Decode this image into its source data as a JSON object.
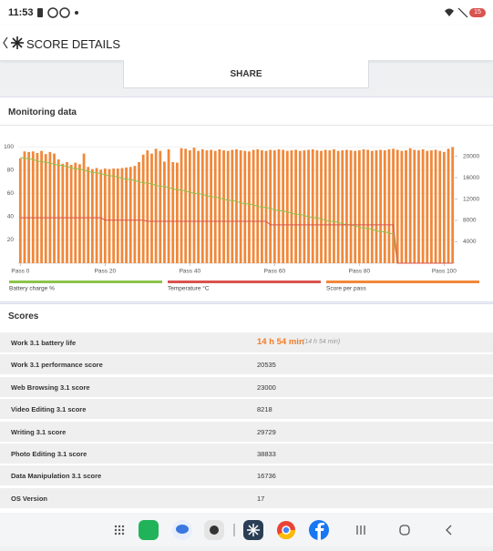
{
  "status_bar": {
    "time": "11:53",
    "battery": "15"
  },
  "header": {
    "title": "SCORE DETAILS"
  },
  "share_button": "SHARE",
  "monitoring": {
    "title": "Monitoring data"
  },
  "chart_data": {
    "type": "combo",
    "x": [
      0,
      1,
      2,
      3,
      4,
      5,
      6,
      7,
      8,
      9,
      10,
      11,
      12,
      13,
      14,
      15,
      16,
      17,
      18,
      19,
      20,
      21,
      22,
      23,
      24,
      25,
      26,
      27,
      28,
      29,
      30,
      31,
      32,
      33,
      34,
      35,
      36,
      37,
      38,
      39,
      40,
      41,
      42,
      43,
      44,
      45,
      46,
      47,
      48,
      49,
      50,
      51,
      52,
      53,
      54,
      55,
      56,
      57,
      58,
      59,
      60,
      61,
      62,
      63,
      64,
      65,
      66,
      67,
      68,
      69,
      70,
      71,
      72,
      73,
      74,
      75,
      76,
      77,
      78,
      79,
      80,
      81,
      82,
      83,
      84,
      85,
      86,
      87,
      88,
      89,
      90,
      91,
      92,
      93,
      94,
      95,
      96,
      97,
      98,
      99,
      100,
      101,
      102
    ],
    "xlim": [
      -0.5,
      102.5
    ],
    "xticks": [
      {
        "value": 0,
        "label": "Pass 0"
      },
      {
        "value": 20,
        "label": "Pass 20"
      },
      {
        "value": 40,
        "label": "Pass 40"
      },
      {
        "value": 60,
        "label": "Pass 60"
      },
      {
        "value": 80,
        "label": "Pass 80"
      },
      {
        "value": 100,
        "label": "Pass 100"
      }
    ],
    "ylim": [
      0,
      108
    ],
    "yticks": [
      20,
      40,
      60,
      80,
      100
    ],
    "y2lim": [
      0,
      23500
    ],
    "y2ticks": [
      4000,
      8000,
      12000,
      16000,
      20000
    ],
    "grid": true,
    "series": [
      {
        "name": "Battery charge %",
        "type": "line",
        "color": "#8cc34a",
        "values": [
          91,
          90,
          90,
          89,
          88,
          87,
          87,
          86,
          85,
          84,
          84,
          83,
          82,
          81,
          81,
          80,
          79,
          78,
          78,
          77,
          76,
          75,
          75,
          74,
          73,
          72,
          72,
          71,
          70,
          69,
          69,
          68,
          67,
          66,
          66,
          65,
          64,
          63,
          63,
          62,
          61,
          60,
          60,
          59,
          58,
          57,
          57,
          56,
          55,
          54,
          54,
          53,
          52,
          51,
          51,
          50,
          49,
          48,
          48,
          47,
          46,
          45,
          45,
          44,
          43,
          42,
          42,
          41,
          40,
          39,
          39,
          38,
          37,
          36,
          36,
          35,
          34,
          33,
          33,
          32,
          31,
          30,
          30,
          29,
          28,
          27,
          27,
          26,
          25,
          0,
          0,
          0,
          0,
          0,
          0,
          0,
          0,
          0,
          0,
          0,
          0,
          0,
          0
        ]
      },
      {
        "name": "Temperature °C",
        "type": "line",
        "color": "#d9534f",
        "values": [
          39,
          39,
          39,
          39,
          39,
          39,
          39,
          39,
          39,
          39,
          39,
          39,
          39,
          39,
          39,
          39,
          39,
          39,
          39,
          39,
          37,
          37,
          37,
          37,
          37,
          37,
          37,
          37,
          37,
          37,
          36,
          36,
          36,
          36,
          36,
          36,
          36,
          36,
          36,
          36,
          36,
          36,
          36,
          36,
          36,
          36,
          36,
          36,
          36,
          36,
          36,
          36,
          36,
          36,
          36,
          36,
          36,
          36,
          36,
          33,
          33,
          33,
          33,
          33,
          33,
          33,
          33,
          33,
          33,
          33,
          33,
          33,
          33,
          33,
          33,
          33,
          33,
          33,
          33,
          33,
          33,
          33,
          33,
          33,
          33,
          33,
          33,
          33,
          33,
          0,
          0,
          0,
          0,
          0,
          0,
          0,
          0,
          0,
          0,
          0,
          0,
          0,
          0
        ]
      },
      {
        "name": "Score per pass",
        "type": "bar",
        "axis": "y2",
        "color": "#f0883a",
        "values": [
          19600,
          20900,
          20800,
          20900,
          20600,
          21000,
          20400,
          20800,
          20500,
          19400,
          18600,
          18900,
          18400,
          18800,
          18500,
          20500,
          18000,
          17600,
          17800,
          17500,
          17700,
          17600,
          17700,
          17700,
          17800,
          17900,
          18000,
          18200,
          18900,
          20300,
          21100,
          20500,
          21400,
          21000,
          19000,
          21300,
          18900,
          18800,
          21500,
          21400,
          21100,
          21600,
          21000,
          21300,
          21100,
          21200,
          21000,
          21300,
          21100,
          21000,
          21200,
          21300,
          21100,
          21000,
          20900,
          21200,
          21300,
          21100,
          21000,
          21200,
          21100,
          21300,
          21200,
          21000,
          21100,
          21200,
          21000,
          21100,
          21200,
          21300,
          21100,
          21000,
          21200,
          21100,
          21300,
          21000,
          21100,
          21200,
          21100,
          21000,
          21100,
          21300,
          21200,
          21000,
          21100,
          21200,
          21100,
          21300,
          21400,
          21200,
          21000,
          21100,
          21500,
          21200,
          21100,
          21300,
          21000,
          21100,
          21200,
          21000,
          20800,
          21400,
          21700
        ]
      }
    ]
  },
  "scores": {
    "title": "Scores",
    "rows": [
      {
        "label": "Work 3.1 battery life",
        "value": "14 h 54 min",
        "note": "(14 h 54 min)"
      },
      {
        "label": "Work 3.1 performance score",
        "value": "20535"
      },
      {
        "label": "Web Browsing 3.1 score",
        "value": "23000"
      },
      {
        "label": "Video Editing 3.1 score",
        "value": "8218"
      },
      {
        "label": "Writing 3.1 score",
        "value": "29729"
      },
      {
        "label": "Photo Editing 3.1 score",
        "value": "38833"
      },
      {
        "label": "Data Manipulation 3.1 score",
        "value": "16736"
      },
      {
        "label": "OS Version",
        "value": "17"
      }
    ]
  }
}
